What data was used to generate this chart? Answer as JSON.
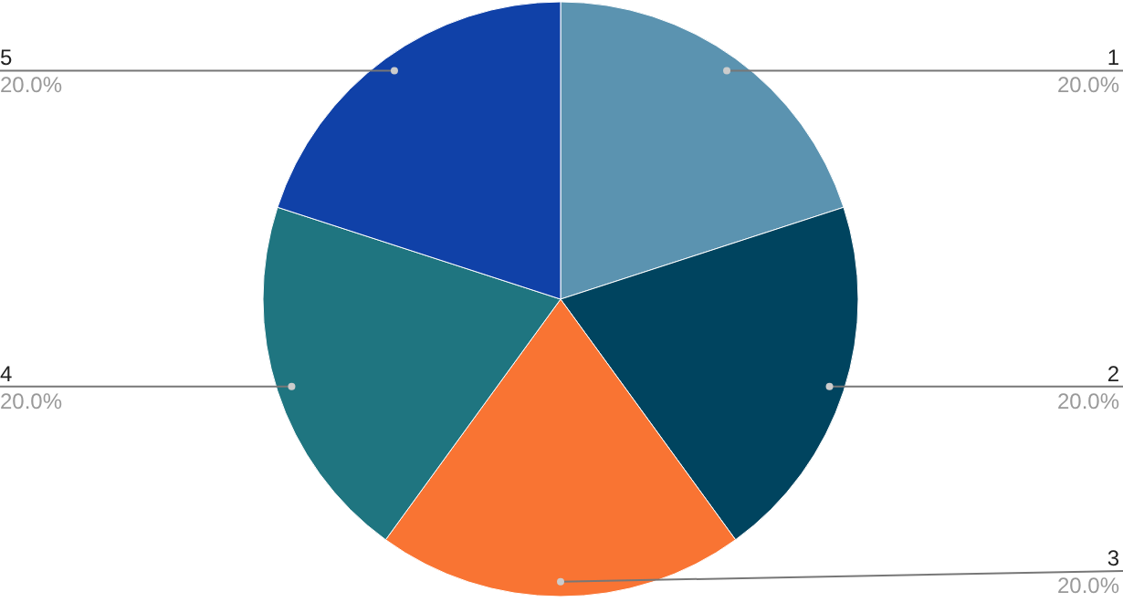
{
  "chart_data": {
    "type": "pie",
    "categories": [
      "1",
      "2",
      "3",
      "4",
      "5"
    ],
    "values": [
      20,
      20,
      20,
      20,
      20
    ],
    "colors": [
      "#5b93b0",
      "#00445f",
      "#f97433",
      "#1f7580",
      "#1041a8"
    ],
    "value_labels": [
      "20.0%",
      "20.0%",
      "20.0%",
      "20.0%",
      "20.0%"
    ]
  }
}
